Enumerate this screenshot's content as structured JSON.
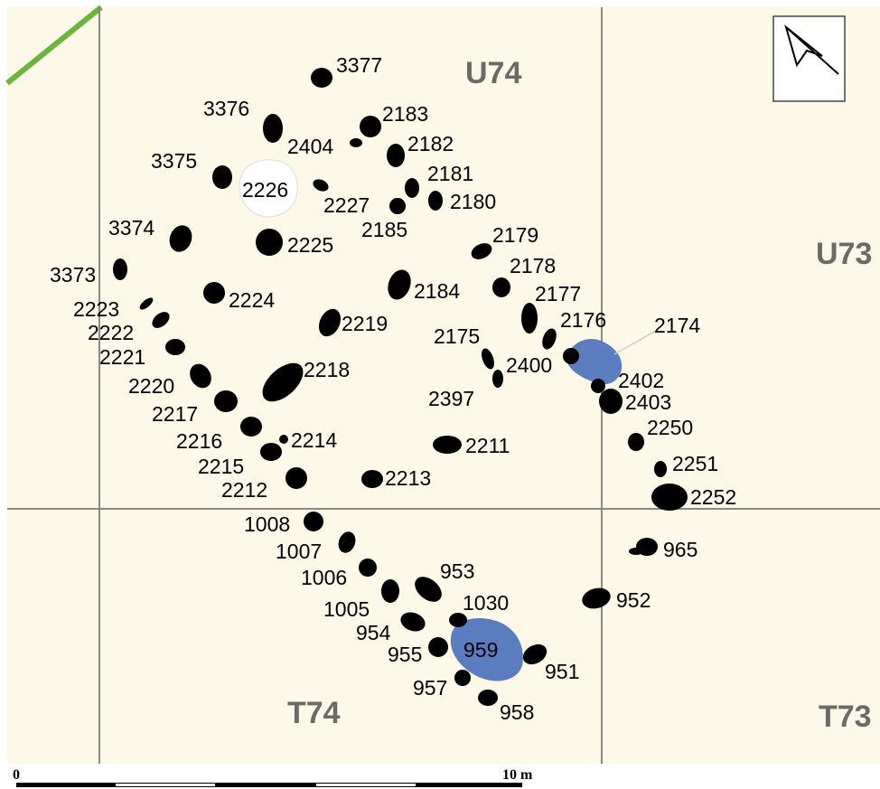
{
  "colors": {
    "background": "#fcf9e8",
    "grid_line": "#8a8a82",
    "posthole": "#000000",
    "pit_fill": "#5b7cbf",
    "blank_fill": "#ffffff",
    "edge_line": "#6cb33f",
    "scale_bar": "#000000"
  },
  "grid_labels": {
    "u74": "U74",
    "u73": "U73",
    "t74": "T74",
    "t73": "T73"
  },
  "north_arrow": {
    "icon": "north-arrow-icon"
  },
  "scale_bar": {
    "start_label": "0",
    "end_label": "10 m"
  },
  "features": {
    "f3377": "3377",
    "f3376": "3376",
    "f3375": "3375",
    "f3374": "3374",
    "f3373": "3373",
    "f2226": "2226",
    "f2404": "2404",
    "f2183": "2183",
    "f2182": "2182",
    "f2181": "2181",
    "f2180": "2180",
    "f2227": "2227",
    "f2185": "2185",
    "f2225": "2225",
    "f2179": "2179",
    "f2178": "2178",
    "f2177": "2177",
    "f2176": "2176",
    "f2174": "2174",
    "f2184": "2184",
    "f2224": "2224",
    "f2219": "2219",
    "f2223": "2223",
    "f2222": "2222",
    "f2221": "2221",
    "f2220": "2220",
    "f2217": "2217",
    "f2218": "2218",
    "f2175": "2175",
    "f2400": "2400",
    "f2397": "2397",
    "f2402": "2402",
    "f2403": "2403",
    "f2250": "2250",
    "f2216": "2216",
    "f2214": "2214",
    "f2215": "2215",
    "f2212": "2212",
    "f2211": "2211",
    "f2213": "2213",
    "f2251": "2251",
    "f2252": "2252",
    "f1008": "1008",
    "f1007": "1007",
    "f1006": "1006",
    "f1005": "1005",
    "f953": "953",
    "f1030": "1030",
    "f954": "954",
    "f955": "955",
    "f959": "959",
    "f951": "951",
    "f957": "957",
    "f958": "958",
    "f965": "965",
    "f952": "952"
  }
}
